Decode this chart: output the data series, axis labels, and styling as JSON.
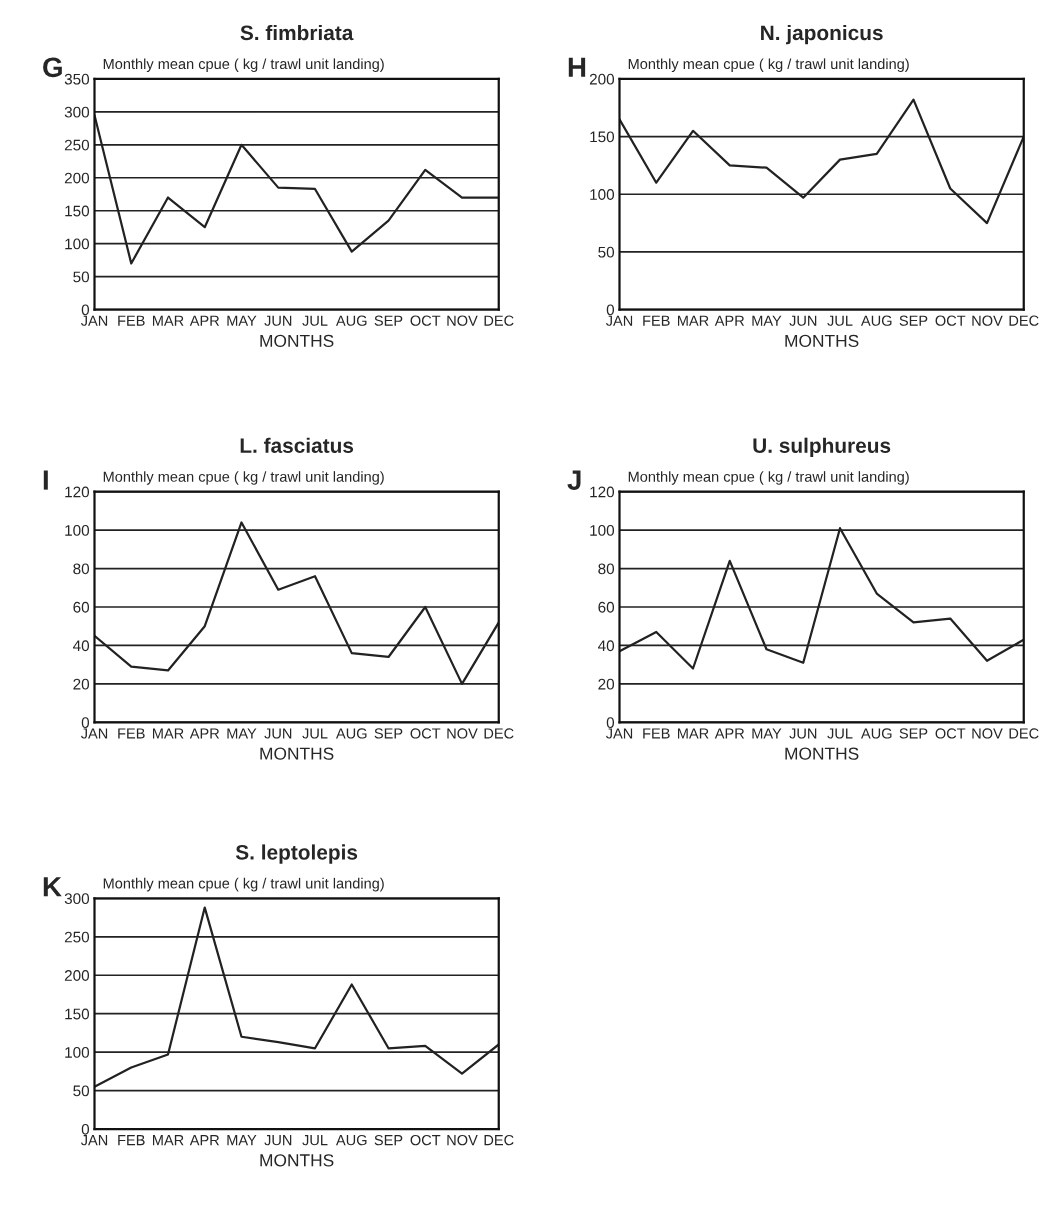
{
  "chart_data": [
    {
      "type": "line",
      "title": "S. fimbriata",
      "ylabel": "Monthly mean cpue ( kg / trawl unit landing)",
      "xlabel": "MONTHS",
      "annotations": [
        "G"
      ],
      "categories": [
        "JAN",
        "FEB",
        "MAR",
        "APR",
        "MAY",
        "JUN",
        "JUL",
        "AUG",
        "SEP",
        "OCT",
        "NOV",
        "DEC"
      ],
      "color": "#222222",
      "values": [
        295,
        70,
        170,
        125,
        250,
        185,
        183,
        88,
        135,
        212,
        170,
        170
      ],
      "ylim": [
        0,
        350
      ],
      "yticks": [
        0,
        50,
        100,
        150,
        200,
        250,
        300,
        350
      ],
      "grid": "y"
    },
    {
      "type": "line",
      "title": "N. japonicus",
      "ylabel": "Monthly mean cpue ( kg / trawl unit landing)",
      "xlabel": "MONTHS",
      "annotations": [
        "H"
      ],
      "categories": [
        "JAN",
        "FEB",
        "MAR",
        "APR",
        "MAY",
        "JUN",
        "JUL",
        "AUG",
        "SEP",
        "OCT",
        "NOV",
        "DEC"
      ],
      "color": "#222222",
      "values": [
        165,
        110,
        155,
        125,
        123,
        97,
        130,
        135,
        182,
        105,
        75,
        150
      ],
      "ylim": [
        0,
        200
      ],
      "yticks": [
        0,
        50,
        100,
        150,
        200
      ],
      "grid": "y"
    },
    {
      "type": "line",
      "title": "L. fasciatus",
      "ylabel": "Monthly mean cpue ( kg / trawl unit landing)",
      "xlabel": "MONTHS",
      "annotations": [
        "I"
      ],
      "categories": [
        "JAN",
        "FEB",
        "MAR",
        "APR",
        "MAY",
        "JUN",
        "JUL",
        "AUG",
        "SEP",
        "OCT",
        "NOV",
        "DEC"
      ],
      "color": "#222222",
      "values": [
        45,
        29,
        27,
        50,
        104,
        69,
        76,
        36,
        34,
        60,
        20,
        52
      ],
      "ylim": [
        0,
        120
      ],
      "yticks": [
        0,
        20,
        40,
        60,
        80,
        100,
        120
      ],
      "grid": "y"
    },
    {
      "type": "line",
      "title": "U. sulphureus",
      "ylabel": "Monthly mean cpue ( kg / trawl unit landing)",
      "xlabel": "MONTHS",
      "annotations": [
        "J"
      ],
      "categories": [
        "JAN",
        "FEB",
        "MAR",
        "APR",
        "MAY",
        "JUN",
        "JUL",
        "AUG",
        "SEP",
        "OCT",
        "NOV",
        "DEC"
      ],
      "color": "#222222",
      "values": [
        37,
        47,
        28,
        84,
        38,
        31,
        101,
        67,
        52,
        54,
        32,
        43
      ],
      "ylim": [
        0,
        120
      ],
      "yticks": [
        0,
        20,
        40,
        60,
        80,
        100,
        120
      ],
      "grid": "y"
    },
    {
      "type": "line",
      "title": "S. leptolepis",
      "ylabel": "Monthly mean cpue ( kg / trawl unit landing)",
      "xlabel": "MONTHS",
      "annotations": [
        "K"
      ],
      "categories": [
        "JAN",
        "FEB",
        "MAR",
        "APR",
        "MAY",
        "JUN",
        "JUL",
        "AUG",
        "SEP",
        "OCT",
        "NOV",
        "DEC"
      ],
      "color": "#222222",
      "values": [
        55,
        80,
        97,
        288,
        120,
        113,
        105,
        188,
        105,
        108,
        72,
        110
      ],
      "ylim": [
        0,
        300
      ],
      "yticks": [
        0,
        50,
        100,
        150,
        200,
        250,
        300
      ],
      "grid": "y"
    }
  ]
}
